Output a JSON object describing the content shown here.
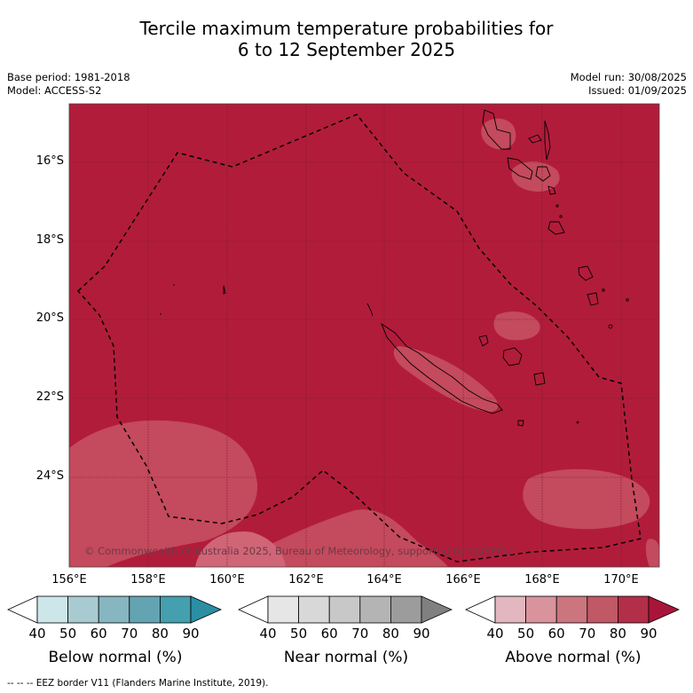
{
  "title_line1": "Tercile maximum temperature probabilities for",
  "title_line2": "6 to 12 September 2025",
  "base_period": "Base period: 1981-2018",
  "model": "Model: ACCESS-S2",
  "model_run": "Model run: 30/08/2025",
  "issued": "Issued: 01/09/2025",
  "copyright": "© Commonwealth of Australia 2025, Bureau of Meteorology, supported by COSPPac",
  "footer": "--  --  -- EEZ border V11 (Flanders Marine Institute, 2019).",
  "lat_labels": [
    "16°S",
    "18°S",
    "20°S",
    "22°S",
    "24°S"
  ],
  "lon_labels": [
    "156°E",
    "158°E",
    "160°E",
    "162°E",
    "164°E",
    "166°E",
    "168°E",
    "170°E"
  ],
  "map_colors": {
    "ocean": "#b21c3b",
    "light_patch": "#c44a5d",
    "lighter_patch": "#d66c7c",
    "grid": "#6a1a2a",
    "coast": "#000000"
  },
  "colorbars": [
    {
      "label": "Below normal (%)",
      "ticks": [
        "40",
        "50",
        "60",
        "70",
        "80",
        "90"
      ],
      "colors": [
        "#ffffff",
        "#cde6ea",
        "#a8cbd1",
        "#86b6c0",
        "#64a4b2",
        "#449fae",
        "#2b8ea3"
      ]
    },
    {
      "label": "Near normal (%)",
      "ticks": [
        "40",
        "50",
        "60",
        "70",
        "80",
        "90"
      ],
      "colors": [
        "#ffffff",
        "#e6e6e6",
        "#d8d8d8",
        "#c8c8c8",
        "#b4b4b4",
        "#9c9c9c",
        "#808080"
      ]
    },
    {
      "label": "Above normal (%)",
      "ticks": [
        "40",
        "50",
        "60",
        "70",
        "80",
        "90"
      ],
      "colors": [
        "#ffffff",
        "#e2b7bf",
        "#d8939c",
        "#cb767f",
        "#c15866",
        "#b32e48",
        "#a9153a"
      ]
    }
  ]
}
